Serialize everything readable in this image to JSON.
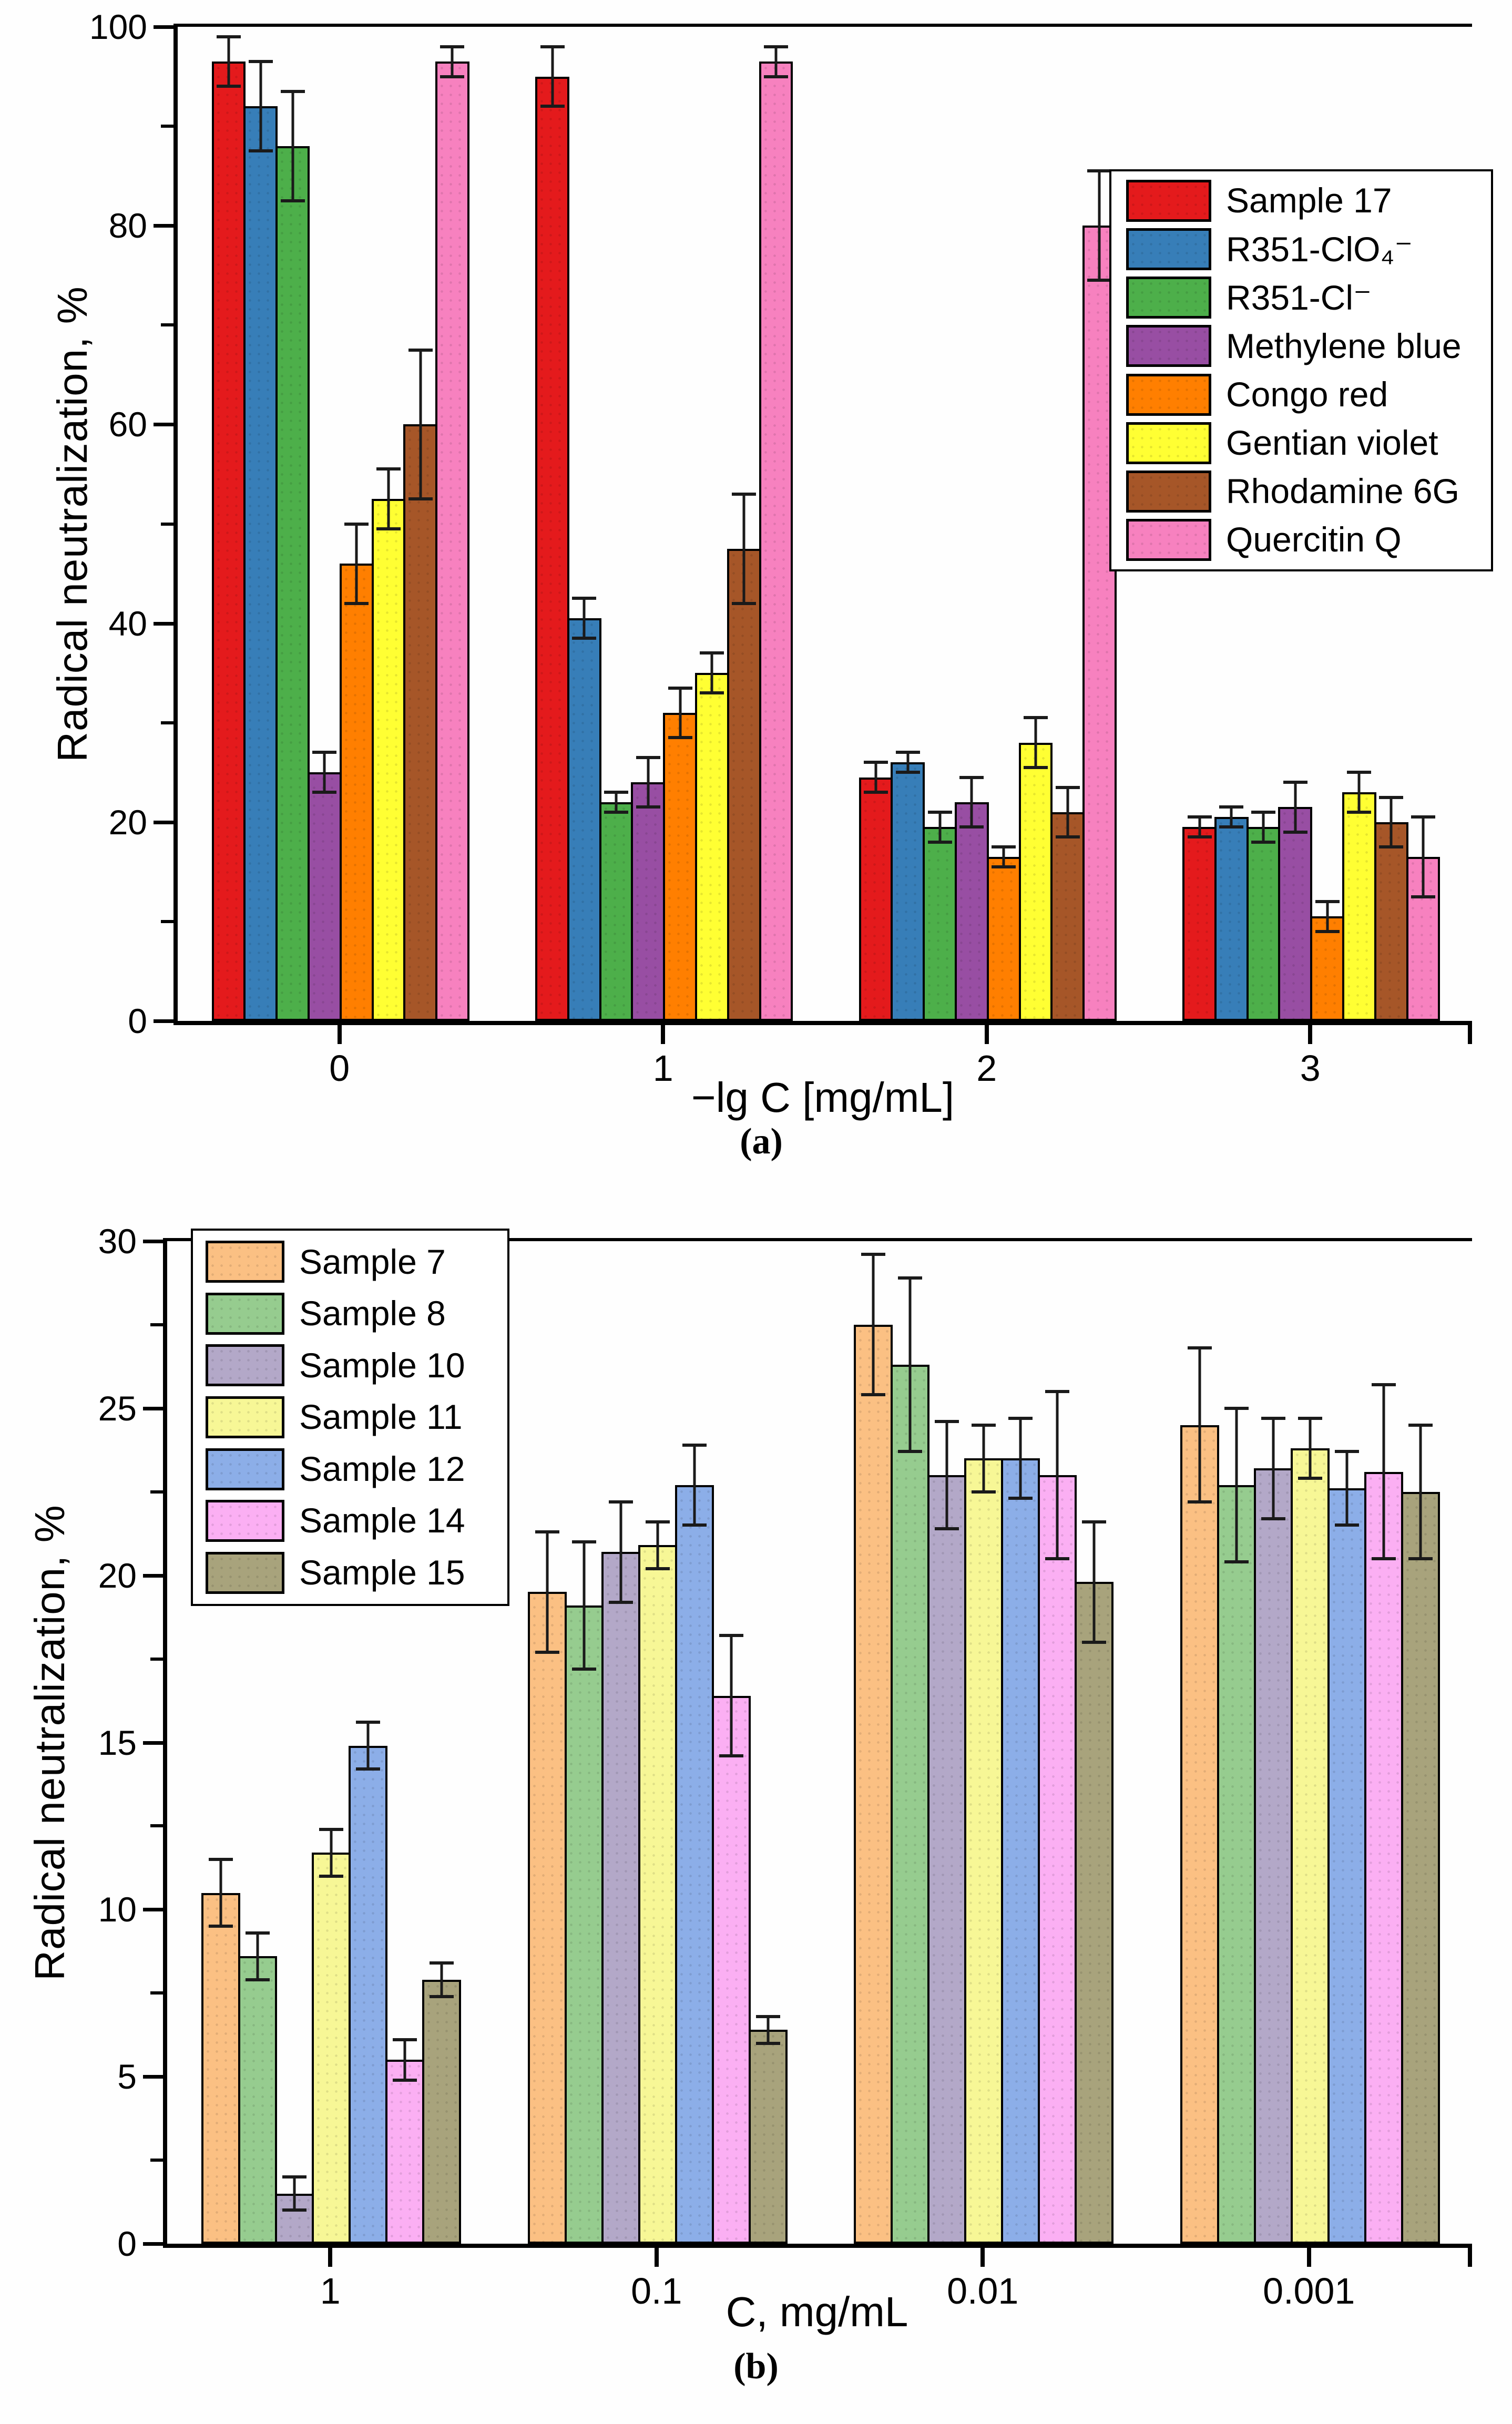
{
  "figure": {
    "background": "#fefefe",
    "axis_color": "#000000"
  },
  "chart_data": [
    {
      "type": "bar",
      "panel": "a",
      "caption": "(a)",
      "title": "",
      "xlabel": "−lg C [mg/mL]",
      "ylabel": "Radical neutralization, %",
      "ylim": [
        0,
        100
      ],
      "yticks": [
        0,
        20,
        40,
        60,
        80,
        100
      ],
      "minor_step": 10,
      "grid": "off",
      "legend_position": "top-right",
      "categories": [
        "0",
        "1",
        "2",
        "3"
      ],
      "series": [
        {
          "name": "Sample 17",
          "color": "#e41a1c",
          "values": [
            96.5,
            95.0,
            24.5,
            19.5
          ],
          "errors": [
            2.5,
            3.0,
            1.5,
            1.0
          ]
        },
        {
          "name": "R351-ClO₄⁻",
          "color": "#377eb8",
          "values": [
            92.0,
            40.5,
            26.0,
            20.5
          ],
          "errors": [
            4.5,
            2.0,
            1.0,
            1.0
          ]
        },
        {
          "name": "R351-Cl⁻",
          "color": "#4daf4a",
          "values": [
            88.0,
            22.0,
            19.5,
            19.5
          ],
          "errors": [
            5.5,
            1.0,
            1.5,
            1.5
          ]
        },
        {
          "name": "Methylene blue",
          "color": "#984ea3",
          "values": [
            25.0,
            24.0,
            22.0,
            21.5
          ],
          "errors": [
            2.0,
            2.5,
            2.5,
            2.5
          ]
        },
        {
          "name": "Congo red",
          "color": "#ff7f00",
          "values": [
            46.0,
            31.0,
            16.5,
            10.5
          ],
          "errors": [
            4.0,
            2.5,
            1.0,
            1.5
          ]
        },
        {
          "name": "Gentian violet",
          "color": "#ffff33",
          "values": [
            52.5,
            35.0,
            28.0,
            23.0
          ],
          "errors": [
            3.0,
            2.0,
            2.5,
            2.0
          ]
        },
        {
          "name": "Rhodamine 6G",
          "color": "#a65628",
          "values": [
            60.0,
            47.5,
            21.0,
            20.0
          ],
          "errors": [
            7.5,
            5.5,
            2.5,
            2.5
          ]
        },
        {
          "name": "Quercitin Q",
          "color": "#f781bf",
          "values": [
            96.5,
            96.5,
            80.0,
            16.5
          ],
          "errors": [
            1.5,
            1.5,
            5.5,
            4.0
          ]
        }
      ]
    },
    {
      "type": "bar",
      "panel": "b",
      "caption": "(b)",
      "title": "",
      "xlabel": "C, mg/mL",
      "ylabel": "Radical neutralization, %",
      "ylim": [
        0,
        30
      ],
      "yticks": [
        0,
        5,
        10,
        15,
        20,
        25,
        30
      ],
      "minor_step": 2.5,
      "grid": "off",
      "legend_position": "top-left",
      "categories": [
        "1",
        "0.1",
        "0.01",
        "0.001"
      ],
      "series": [
        {
          "name": "Sample 7",
          "color": "#fbc083",
          "values": [
            10.5,
            19.5,
            27.5,
            24.5
          ],
          "errors": [
            1.0,
            1.8,
            2.1,
            2.3
          ]
        },
        {
          "name": "Sample 8",
          "color": "#96cc8f",
          "values": [
            8.6,
            19.1,
            26.3,
            22.7
          ],
          "errors": [
            0.7,
            1.9,
            2.6,
            2.3
          ]
        },
        {
          "name": "Sample 10",
          "color": "#b3a8c8",
          "values": [
            1.5,
            20.7,
            23.0,
            23.2
          ],
          "errors": [
            0.5,
            1.5,
            1.6,
            1.5
          ]
        },
        {
          "name": "Sample 11",
          "color": "#f7f796",
          "values": [
            11.7,
            20.9,
            23.5,
            23.8
          ],
          "errors": [
            0.7,
            0.7,
            1.0,
            0.9
          ]
        },
        {
          "name": "Sample 12",
          "color": "#8caee8",
          "values": [
            14.9,
            22.7,
            23.5,
            22.6
          ],
          "errors": [
            0.7,
            1.2,
            1.2,
            1.1
          ]
        },
        {
          "name": "Sample 14",
          "color": "#fbaff3",
          "values": [
            5.5,
            16.4,
            23.0,
            23.1
          ],
          "errors": [
            0.6,
            1.8,
            2.5,
            2.6
          ]
        },
        {
          "name": "Sample 15",
          "color": "#a8a37c",
          "values": [
            7.9,
            6.4,
            19.8,
            22.5
          ],
          "errors": [
            0.5,
            0.4,
            1.8,
            2.0
          ]
        }
      ]
    }
  ]
}
